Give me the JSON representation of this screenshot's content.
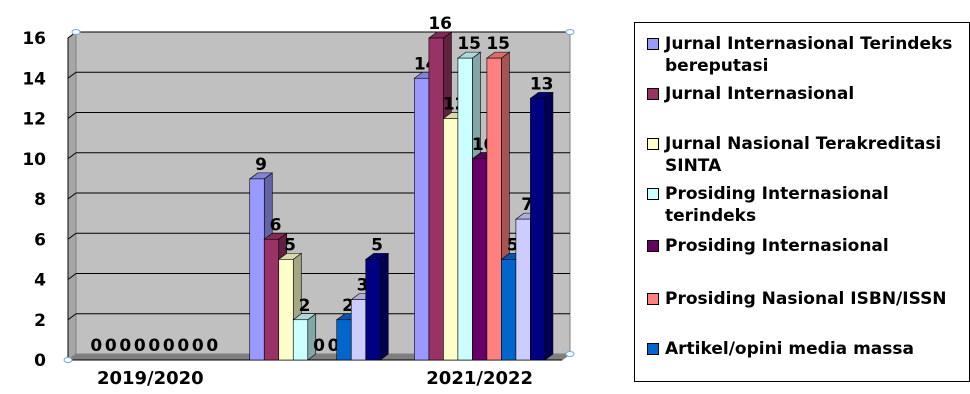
{
  "chart_data": {
    "type": "bar",
    "title": "",
    "xlabel": "",
    "ylabel": "",
    "ylim": [
      0,
      16
    ],
    "yticks": [
      0,
      2,
      4,
      6,
      8,
      10,
      12,
      14,
      16
    ],
    "grid": true,
    "legend_position": "right",
    "categories": [
      "2019/2020",
      "",
      "2021/2022"
    ],
    "series": [
      {
        "name": "Jurnal Internasional Terindeks bereputasi",
        "color": "#9999ff",
        "values": [
          0,
          9,
          14
        ],
        "labels": [
          "0",
          "9",
          "14"
        ]
      },
      {
        "name": "Jurnal Internasional",
        "color": "#993366",
        "values": [
          0,
          6,
          16
        ],
        "labels": [
          "0",
          "6",
          "16"
        ]
      },
      {
        "name": "Jurnal Nasional Terakreditasi SINTA",
        "color": "#ffffcc",
        "values": [
          0,
          5,
          12
        ],
        "labels": [
          "0",
          "5",
          "12"
        ]
      },
      {
        "name": "Prosiding Internasional terindeks",
        "color": "#ccffff",
        "values": [
          0,
          2,
          15
        ],
        "labels": [
          "0",
          "2",
          "15"
        ]
      },
      {
        "name": "Prosiding Internasional",
        "color": "#660066",
        "values": [
          0,
          0,
          10
        ],
        "labels": [
          "0",
          "0",
          "10"
        ]
      },
      {
        "name": "Prosiding Nasional ISBN/ISSN",
        "color": "#ff8080",
        "values": [
          0,
          0,
          15
        ],
        "labels": [
          "0",
          "0",
          "15"
        ]
      },
      {
        "name": "Artikel/opini media massa",
        "color": "#0066cc",
        "values": [
          0,
          2,
          5
        ],
        "labels": [
          "0",
          "2",
          "5"
        ]
      },
      {
        "name": "",
        "color": "#ccccff",
        "values": [
          0,
          3,
          7
        ],
        "labels": [
          "0",
          "3",
          "7"
        ]
      },
      {
        "name": "",
        "color": "#000080",
        "values": [
          0,
          5,
          13
        ],
        "labels": [
          "0",
          "5",
          "13"
        ]
      }
    ]
  }
}
